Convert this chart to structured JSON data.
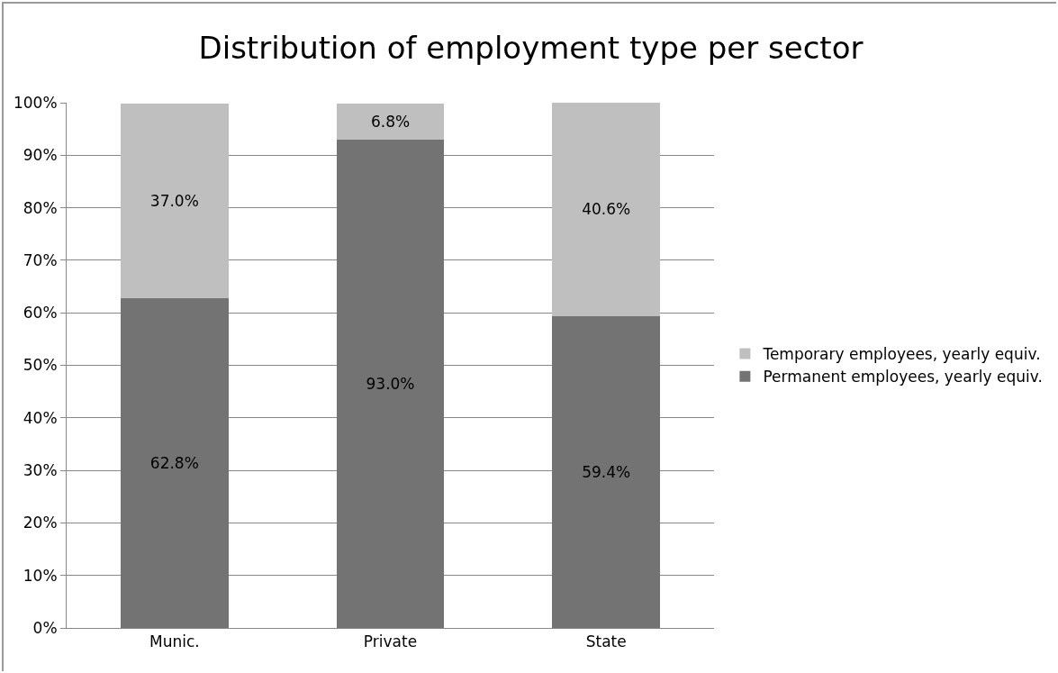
{
  "chart_data": {
    "type": "bar",
    "title": "Distribution of employment type per sector",
    "categories": [
      "Munic.",
      "Private",
      "State"
    ],
    "stacked": true,
    "series": [
      {
        "name": "Permanent employees, yearly equiv.",
        "color": "#737373",
        "values": [
          62.8,
          93.0,
          59.4
        ],
        "value_labels": [
          "62.8%",
          "93.0%",
          "59.4%"
        ]
      },
      {
        "name": "Temporary employees, yearly equiv.",
        "color": "#bfbfbf",
        "values": [
          37.0,
          6.8,
          40.6
        ],
        "value_labels": [
          "37.0%",
          "6.8%",
          "40.6%"
        ]
      }
    ],
    "ylim": [
      0,
      100
    ],
    "yticks": [
      {
        "value": 0,
        "label": "0%"
      },
      {
        "value": 10,
        "label": "10%"
      },
      {
        "value": 20,
        "label": "20%"
      },
      {
        "value": 30,
        "label": "30%"
      },
      {
        "value": 40,
        "label": "40%"
      },
      {
        "value": 50,
        "label": "50%"
      },
      {
        "value": 60,
        "label": "60%"
      },
      {
        "value": 70,
        "label": "70%"
      },
      {
        "value": 80,
        "label": "80%"
      },
      {
        "value": 90,
        "label": "90%"
      },
      {
        "value": 100,
        "label": "100%"
      }
    ],
    "grid": "y",
    "legend": "right"
  }
}
